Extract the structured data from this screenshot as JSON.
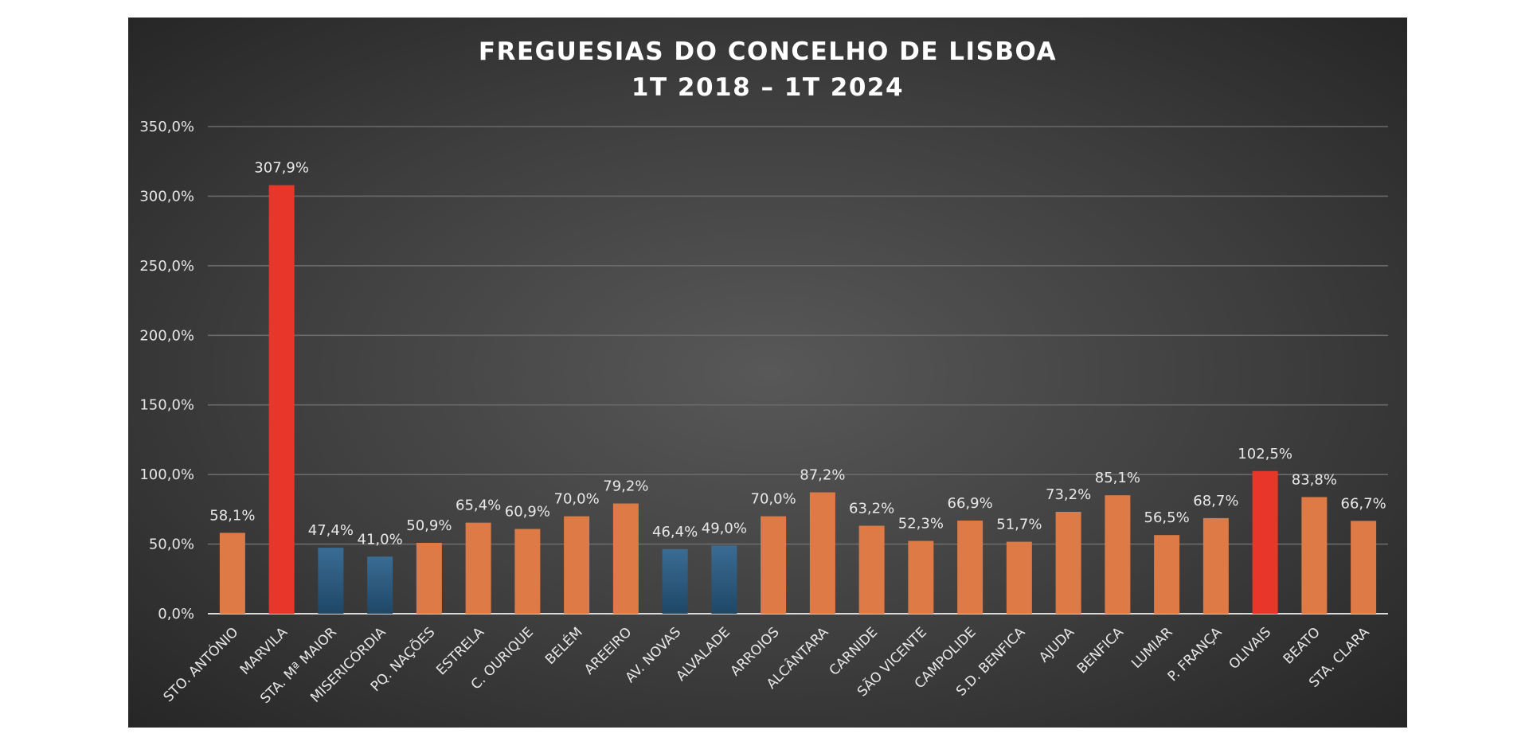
{
  "chart_data": {
    "type": "bar",
    "title_lines": [
      "FREGUESIAS DO CONCELHO DE LISBOA",
      "1T 2018 – 1T 2024"
    ],
    "xlabel": "",
    "ylabel": "",
    "ylim": [
      0,
      350
    ],
    "y_ticks": [
      0,
      50,
      100,
      150,
      200,
      250,
      300,
      350
    ],
    "y_tick_labels": [
      "0,0%",
      "50,0%",
      "100,0%",
      "150,0%",
      "200,0%",
      "250,0%",
      "300,0%",
      "350,0%"
    ],
    "grid": true,
    "categories": [
      "STO. ANTÓNIO",
      "MARVILA",
      "STA. Mª MAIOR",
      "MISERICÓRDIA",
      "PQ. NAÇÕES",
      "ESTRELA",
      "C. OURIQUE",
      "BELÉM",
      "AREEIRO",
      "AV. NOVAS",
      "ALVALADE",
      "ARROIOS",
      "ALCÂNTARA",
      "CARNIDE",
      "SÃO VICENTE",
      "CAMPOLIDE",
      "S.D. BENFICA",
      "AJUDA",
      "BENFICA",
      "LUMIAR",
      "P. FRANÇA",
      "OLIVAIS",
      "BEATO",
      "STA. CLARA"
    ],
    "values": [
      58.1,
      307.9,
      47.4,
      41.0,
      50.9,
      65.4,
      60.9,
      70.0,
      79.2,
      46.4,
      49.0,
      70.0,
      87.2,
      63.2,
      52.3,
      66.9,
      51.7,
      73.2,
      85.1,
      56.5,
      68.7,
      102.5,
      83.8,
      66.7
    ],
    "data_labels": [
      "58,1%",
      "307,9%",
      "47,4%",
      "41,0%",
      "50,9%",
      "65,4%",
      "60,9%",
      "70,0%",
      "79,2%",
      "46,4%",
      "49,0%",
      "70,0%",
      "87,2%",
      "63,2%",
      "52,3%",
      "66,9%",
      "51,7%",
      "73,2%",
      "85,1%",
      "56,5%",
      "68,7%",
      "102,5%",
      "83,8%",
      "66,7%"
    ],
    "bar_colors": [
      "orange",
      "red",
      "blue",
      "blue",
      "orange",
      "orange",
      "orange",
      "orange",
      "orange",
      "blue",
      "blue",
      "orange",
      "orange",
      "orange",
      "orange",
      "orange",
      "orange",
      "orange",
      "orange",
      "orange",
      "orange",
      "red",
      "orange",
      "orange"
    ],
    "palette": {
      "orange": "#DD7A45",
      "red": "#E8372A",
      "blue": "#2E5F86",
      "background": "#3f3f3f"
    }
  }
}
